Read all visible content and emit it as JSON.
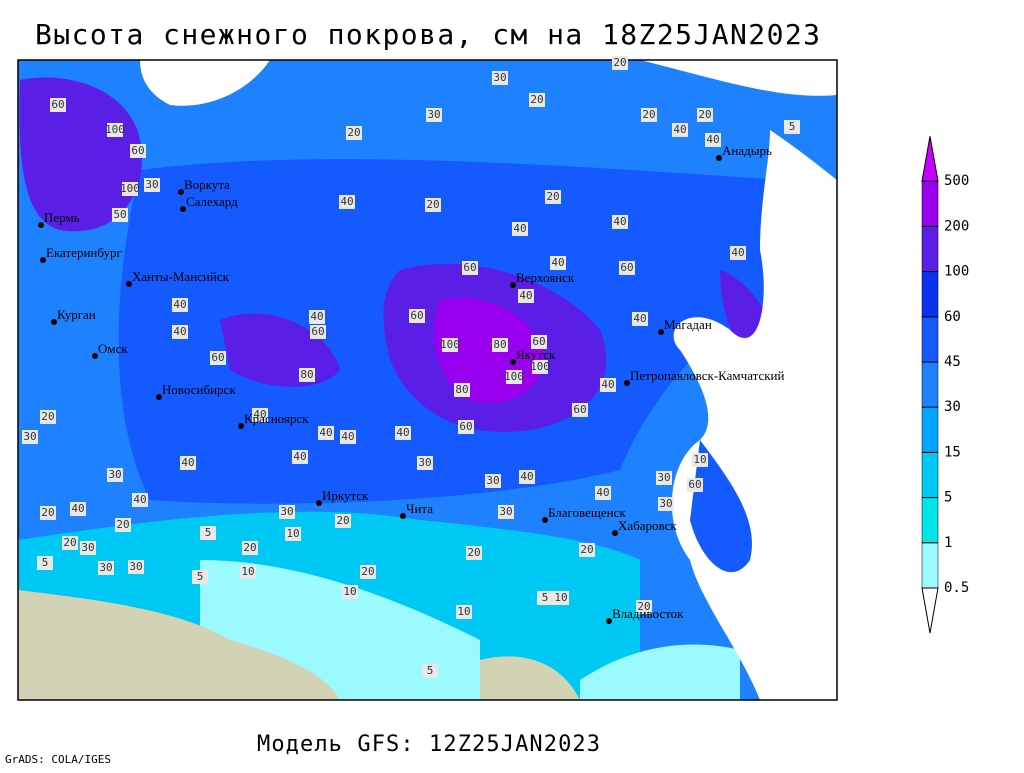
{
  "title": "Высота снежного покрова, см на 18Z25JAN2023",
  "footer": "Модель GFS: 12Z25JAN2023",
  "credit": "GrADS: COLA/IGES",
  "cities": [
    "Анадырь",
    "Воркута",
    "Салехард",
    "Пермь",
    "Екатеринбург",
    "Ханты-Мансийск",
    "Курган",
    "Омск",
    "Новосибирск",
    "Красноярск",
    "Иркутск",
    "Чита",
    "Благовещенск",
    "Хабаровск",
    "Владивосток",
    "Верхоянск",
    "Якутск",
    "Магадан",
    "Петропавловск-Камчатский"
  ],
  "contour_labels": [
    30,
    20,
    30,
    20,
    100,
    60,
    60,
    100,
    30,
    50,
    40,
    20,
    20,
    40,
    40,
    60,
    40,
    60,
    40,
    60,
    40,
    60,
    40,
    40,
    60,
    80,
    100,
    80,
    60,
    100,
    100,
    60,
    80,
    40,
    40,
    40,
    40,
    40,
    40,
    60,
    40,
    40,
    30,
    20,
    40,
    30,
    40,
    20,
    20,
    20,
    30,
    5,
    30,
    30,
    5,
    20,
    10,
    30,
    20,
    20,
    10,
    30,
    30,
    40,
    30,
    20,
    10,
    5,
    10,
    20,
    40,
    30,
    10,
    60,
    30,
    20,
    5,
    10,
    5,
    40,
    40,
    40,
    20,
    20,
    20,
    5
  ],
  "colorbar": {
    "levels": [
      0.5,
      1,
      5,
      15,
      30,
      45,
      60,
      100,
      200,
      500
    ],
    "colors": [
      "#9afaff",
      "#00e6e6",
      "#00c8f5",
      "#00a5ff",
      "#1e82ff",
      "#145aff",
      "#0a32f0",
      "#5a1ee6",
      "#9a00f0"
    ],
    "under_color": "#ffffff",
    "over_color": "#c800ff"
  }
}
